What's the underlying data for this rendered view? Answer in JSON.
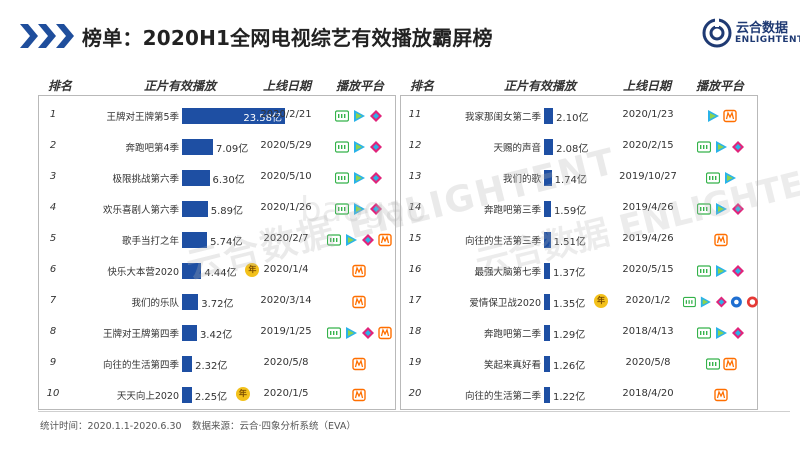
{
  "header": {
    "title": "榜单：2020H1全网电视综艺有效播放霸屏榜",
    "logo_cn": "云合数据",
    "logo_en": "ENLIGHTENT"
  },
  "columns": {
    "rank": "排名",
    "show": "正片有效播放",
    "date": "上线日期",
    "platform": "播放平台"
  },
  "watermark": {
    "text": "云合数据 ENLIGHTENT",
    "site": "baogao"
  },
  "colors": {
    "bar": "#1e4fa3",
    "accent": "#1f3a73",
    "chevron": "#1f4e9c",
    "iqiyi": "#34b24a",
    "tencent": "#2ab3e8",
    "youku": "#e0247b",
    "mango": "#ff6f00",
    "exclusive_badge": "#f3c11b"
  },
  "badge_label": "年",
  "chart_data": {
    "type": "bar",
    "title": "榜单：2020H1全网电视综艺有效播放霸屏榜",
    "unit": "亿",
    "xlim": [
      0,
      23.58
    ],
    "left": [
      {
        "rank": "1",
        "show": "王牌对王牌第5季",
        "value": 23.58,
        "label": "23.58亿",
        "date": "2020/2/21",
        "platforms": [
          "iqiyi-icon",
          "tencent-video-icon",
          "youku-icon"
        ],
        "badge": false
      },
      {
        "rank": "2",
        "show": "奔跑吧第4季",
        "value": 7.09,
        "label": "7.09亿",
        "date": "2020/5/29",
        "platforms": [
          "iqiyi-icon",
          "tencent-video-icon",
          "youku-icon"
        ],
        "badge": false
      },
      {
        "rank": "3",
        "show": "极限挑战第六季",
        "value": 6.3,
        "label": "6.30亿",
        "date": "2020/5/10",
        "platforms": [
          "iqiyi-icon",
          "tencent-video-icon",
          "youku-icon"
        ],
        "badge": false
      },
      {
        "rank": "4",
        "show": "欢乐喜剧人第六季",
        "value": 5.89,
        "label": "5.89亿",
        "date": "2020/1/26",
        "platforms": [
          "iqiyi-icon",
          "tencent-video-icon",
          "youku-icon"
        ],
        "badge": false
      },
      {
        "rank": "5",
        "show": "歌手当打之年",
        "value": 5.74,
        "label": "5.74亿",
        "date": "2020/2/7",
        "platforms": [
          "iqiyi-icon",
          "tencent-video-icon",
          "youku-icon",
          "mango-tv-icon"
        ],
        "badge": false
      },
      {
        "rank": "6",
        "show": "快乐大本营2020",
        "value": 4.44,
        "label": "4.44亿",
        "date": "2020/1/4",
        "platforms": [
          "mango-tv-icon"
        ],
        "badge": true
      },
      {
        "rank": "7",
        "show": "我们的乐队",
        "value": 3.72,
        "label": "3.72亿",
        "date": "2020/3/14",
        "platforms": [
          "mango-tv-icon"
        ],
        "badge": false
      },
      {
        "rank": "8",
        "show": "王牌对王牌第四季",
        "value": 3.42,
        "label": "3.42亿",
        "date": "2019/1/25",
        "platforms": [
          "iqiyi-icon",
          "tencent-video-icon",
          "youku-icon",
          "mango-tv-icon"
        ],
        "badge": false
      },
      {
        "rank": "9",
        "show": "向往的生活第四季",
        "value": 2.32,
        "label": "2.32亿",
        "date": "2020/5/8",
        "platforms": [
          "mango-tv-icon"
        ],
        "badge": false
      },
      {
        "rank": "10",
        "show": "天天向上2020",
        "value": 2.25,
        "label": "2.25亿",
        "date": "2020/1/5",
        "platforms": [
          "mango-tv-icon"
        ],
        "badge": true
      }
    ],
    "right": [
      {
        "rank": "11",
        "show": "我家那闺女第二季",
        "value": 2.1,
        "label": "2.10亿",
        "date": "2020/1/23",
        "platforms": [
          "tencent-video-icon",
          "mango-tv-icon"
        ],
        "badge": false
      },
      {
        "rank": "12",
        "show": "天赐的声音",
        "value": 2.08,
        "label": "2.08亿",
        "date": "2020/2/15",
        "platforms": [
          "iqiyi-icon",
          "tencent-video-icon",
          "youku-icon"
        ],
        "badge": false
      },
      {
        "rank": "13",
        "show": "我们的歌",
        "value": 1.74,
        "label": "1.74亿",
        "date": "2019/10/27",
        "platforms": [
          "iqiyi-icon",
          "tencent-video-icon"
        ],
        "badge": false
      },
      {
        "rank": "14",
        "show": "奔跑吧第三季",
        "value": 1.59,
        "label": "1.59亿",
        "date": "2019/4/26",
        "platforms": [
          "iqiyi-icon",
          "tencent-video-icon",
          "youku-icon"
        ],
        "badge": false
      },
      {
        "rank": "15",
        "show": "向往的生活第三季",
        "value": 1.51,
        "label": "1.51亿",
        "date": "2019/4/26",
        "platforms": [
          "mango-tv-icon"
        ],
        "badge": false
      },
      {
        "rank": "16",
        "show": "最强大脑第七季",
        "value": 1.37,
        "label": "1.37亿",
        "date": "2020/5/15",
        "platforms": [
          "iqiyi-icon",
          "tencent-video-icon",
          "youku-icon"
        ],
        "badge": false
      },
      {
        "rank": "17",
        "show": "爱情保卫战2020",
        "value": 1.35,
        "label": "1.35亿",
        "date": "2020/1/2",
        "platforms": [
          "iqiyi-icon",
          "tencent-video-icon",
          "youku-icon",
          "pptv-icon",
          "other-platform-icon"
        ],
        "badge": true
      },
      {
        "rank": "18",
        "show": "奔跑吧第二季",
        "value": 1.29,
        "label": "1.29亿",
        "date": "2018/4/13",
        "platforms": [
          "iqiyi-icon",
          "tencent-video-icon",
          "youku-icon"
        ],
        "badge": false
      },
      {
        "rank": "19",
        "show": "笑起来真好看",
        "value": 1.26,
        "label": "1.26亿",
        "date": "2020/5/8",
        "platforms": [
          "iqiyi-icon",
          "mango-tv-icon"
        ],
        "badge": false
      },
      {
        "rank": "20",
        "show": "向往的生活第二季",
        "value": 1.22,
        "label": "1.22亿",
        "date": "2018/4/20",
        "platforms": [
          "mango-tv-icon"
        ],
        "badge": false
      }
    ]
  },
  "footer": {
    "period": "统计时间：2020.1.1-2020.6.30",
    "source": "数据来源：云合·四象分析系统（EVA）"
  }
}
